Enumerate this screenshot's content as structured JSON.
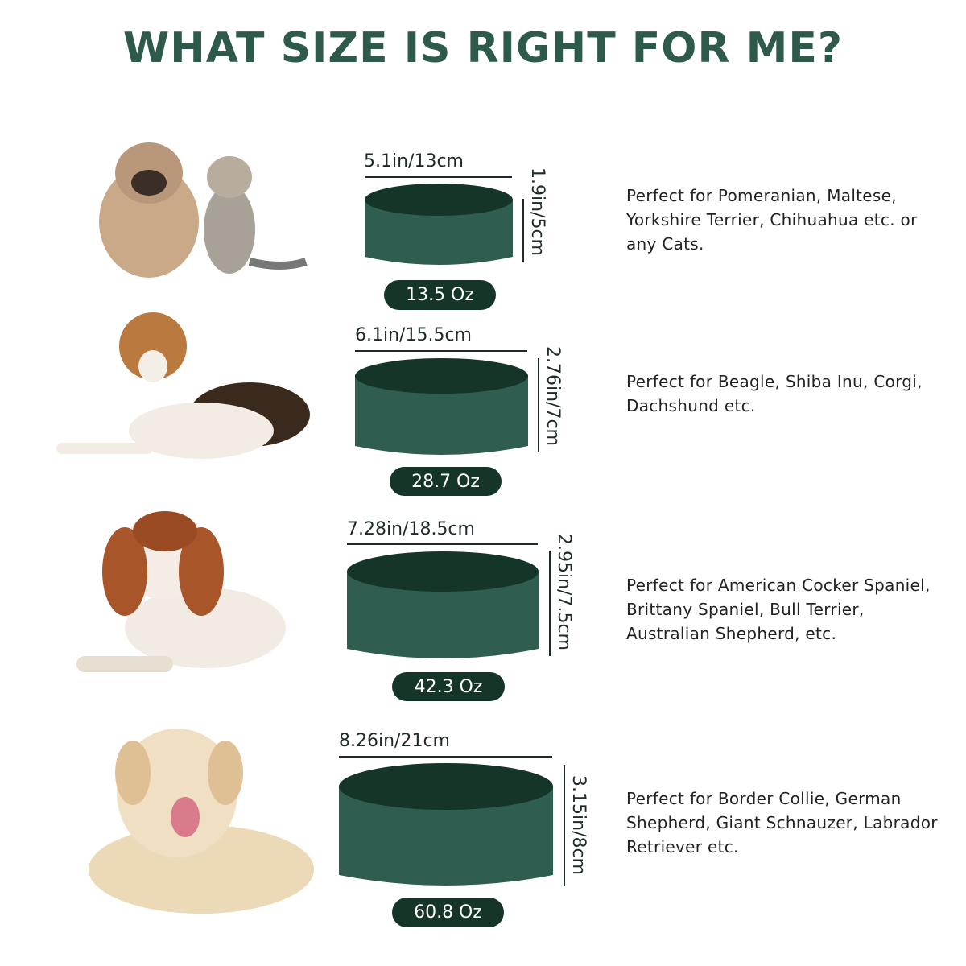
{
  "title": "WHAT SIZE IS RIGHT FOR ME?",
  "colors": {
    "title": "#2e5a4c",
    "bowl_top": "#143528",
    "bowl_body": "#2f5e50",
    "pill": "#143528"
  },
  "sizes": [
    {
      "width": "5.1in/13cm",
      "height": "1.9in/5cm",
      "capacity": "13.5 Oz",
      "description": "Perfect for Pomeranian, Maltese, Yorkshire Terrier, Chihuahua etc. or any Cats.",
      "image": "french-bulldog-puppy-and-kitten"
    },
    {
      "width": "6.1in/15.5cm",
      "height": "2.76in/7cm",
      "capacity": "28.7 Oz",
      "description": "Perfect for Beagle, Shiba Inu, Corgi, Dachshund etc.",
      "image": "beagle"
    },
    {
      "width": "7.28in/18.5cm",
      "height": "2.95in/7.5cm",
      "capacity": "42.3 Oz",
      "description": "Perfect for American Cocker Spaniel, Brittany Spaniel, Bull Terrier, Australian Shepherd, etc.",
      "image": "springer-spaniel"
    },
    {
      "width": "8.26in/21cm",
      "height": "3.15in/8cm",
      "capacity": "60.8 Oz",
      "description": "Perfect for Border Collie, German Shepherd, Giant Schnauzer, Labrador Retriever etc.",
      "image": "labrador-retriever"
    }
  ]
}
